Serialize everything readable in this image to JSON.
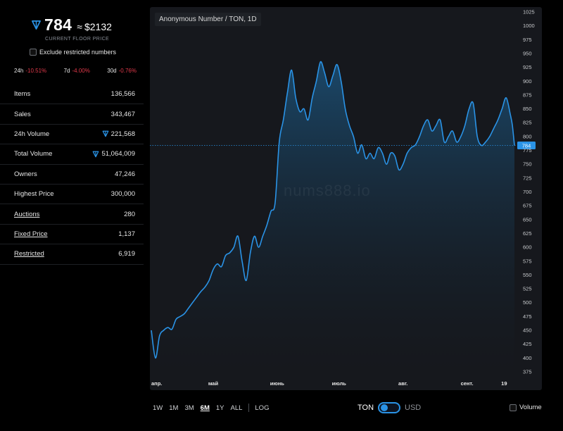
{
  "header": {
    "price": "784",
    "approx": "≈",
    "usd": "$2132",
    "floor_label": "CURRENT FLOOR PRICE",
    "exclude_label": "Exclude restricted numbers"
  },
  "changes": [
    {
      "period": "24h",
      "value": "-10.51%"
    },
    {
      "period": "7d",
      "value": "-4.00%"
    },
    {
      "period": "30d",
      "value": "-0.76%"
    }
  ],
  "stats": [
    {
      "label": "Items",
      "value": "136,566",
      "ton": false,
      "link": false
    },
    {
      "label": "Sales",
      "value": "343,467",
      "ton": false,
      "link": false
    },
    {
      "label": "24h Volume",
      "value": "221,568",
      "ton": true,
      "link": false
    },
    {
      "label": "Total Volume",
      "value": "51,064,009",
      "ton": true,
      "link": false
    },
    {
      "label": "Owners",
      "value": "47,246",
      "ton": false,
      "link": false
    },
    {
      "label": "Highest Price",
      "value": "300,000",
      "ton": false,
      "link": false
    },
    {
      "label": "Auctions",
      "value": "280",
      "ton": false,
      "link": true
    },
    {
      "label": "Fixed Price",
      "value": "1,137",
      "ton": false,
      "link": true
    },
    {
      "label": "Restricted",
      "value": "6,919",
      "ton": false,
      "link": true
    }
  ],
  "chart_title": "Anonymous Number / TON, 1D",
  "watermark": "nums888.io",
  "chart_data": {
    "type": "area",
    "title": "Anonymous Number / TON, 1D",
    "xlabel": "",
    "ylabel": "",
    "ylim": [
      375,
      1025
    ],
    "y_ticks": [
      1025,
      1000,
      975,
      950,
      925,
      900,
      875,
      850,
      825,
      800,
      775,
      750,
      725,
      700,
      675,
      650,
      625,
      600,
      575,
      550,
      525,
      500,
      475,
      450,
      425,
      400,
      375
    ],
    "x_ticks": [
      {
        "label": "апр.",
        "day": 0
      },
      {
        "label": "май",
        "day": 30
      },
      {
        "label": "июнь",
        "day": 61
      },
      {
        "label": "июль",
        "day": 91
      },
      {
        "label": "авг.",
        "day": 122
      },
      {
        "label": "сент.",
        "day": 153
      },
      {
        "label": "19",
        "day": 171
      }
    ],
    "current_price": 784,
    "current_price_label": "784",
    "series": [
      {
        "x": [
          0,
          2,
          4,
          6,
          8,
          10,
          12,
          14,
          16,
          18,
          20,
          22,
          24,
          26,
          28,
          30,
          32,
          34,
          36,
          38,
          40,
          42,
          44,
          46,
          48,
          50,
          52,
          54,
          56,
          58,
          60,
          62,
          64,
          66,
          68,
          70,
          72,
          74,
          76,
          78,
          80,
          82,
          84,
          86,
          88,
          90,
          92,
          94,
          96,
          98,
          100,
          102,
          104,
          106,
          108,
          110,
          112,
          114,
          116,
          118,
          120,
          122,
          124,
          126,
          128,
          130,
          132,
          134,
          136,
          138,
          140,
          142,
          144,
          146,
          148,
          150,
          152,
          154,
          156,
          158,
          160,
          162,
          164,
          166,
          168,
          170,
          172,
          174,
          175,
          176
        ],
        "values": [
          450,
          400,
          440,
          450,
          455,
          452,
          470,
          475,
          480,
          490,
          500,
          510,
          520,
          528,
          540,
          560,
          570,
          565,
          585,
          590,
          600,
          620,
          575,
          540,
          590,
          620,
          600,
          620,
          640,
          665,
          680,
          790,
          830,
          880,
          920,
          870,
          845,
          850,
          830,
          870,
          900,
          935,
          915,
          890,
          910,
          930,
          900,
          850,
          820,
          800,
          770,
          785,
          760,
          770,
          760,
          780,
          770,
          750,
          770,
          765,
          740,
          750,
          770,
          780,
          785,
          800,
          820,
          830,
          810,
          820,
          830,
          790,
          800,
          810,
          790,
          800,
          820,
          850,
          860,
          800,
          784,
          790,
          800,
          815,
          830,
          850,
          870,
          840,
          820,
          784
        ]
      }
    ]
  },
  "controls": {
    "ranges": [
      "1W",
      "1M",
      "3M",
      "6M",
      "1Y",
      "ALL"
    ],
    "active_range": "6M",
    "log_label": "LOG",
    "ton_label": "TON",
    "usd_label": "USD",
    "volume_label": "Volume"
  },
  "colors": {
    "accent": "#2a93e6",
    "negative": "#e0394a",
    "chart_bg": "#16181d"
  }
}
